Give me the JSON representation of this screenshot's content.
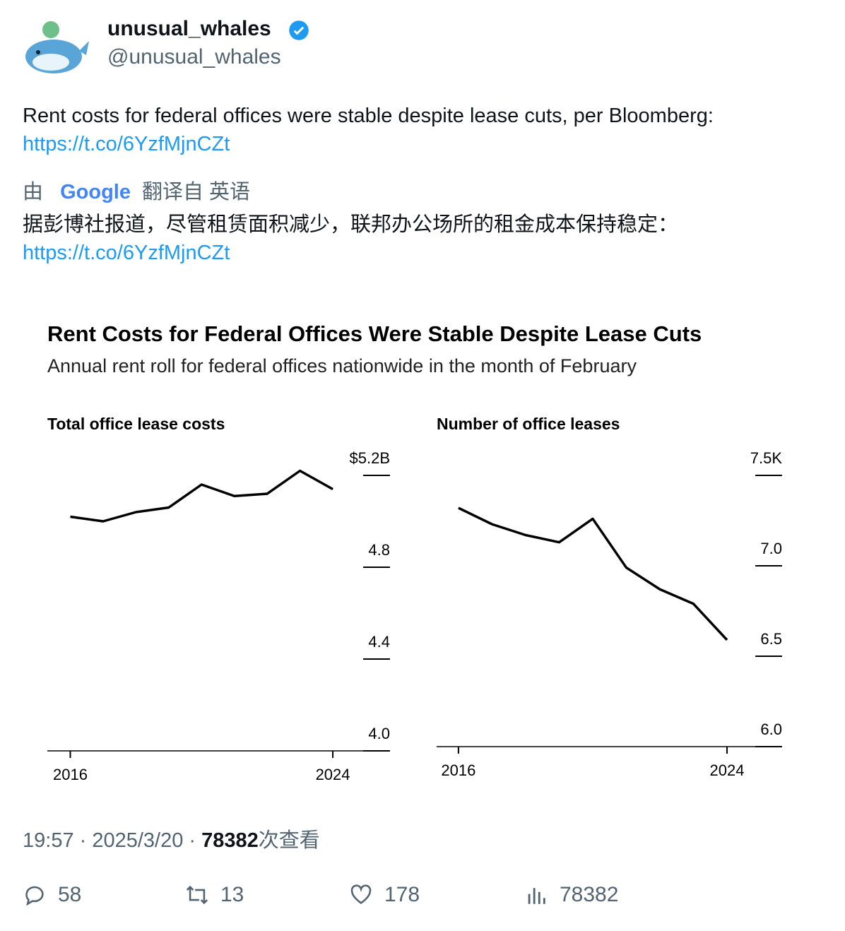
{
  "tweet": {
    "name": "unusual_whales",
    "handle": "@unusual_whales",
    "text": "Rent costs for federal offices were stable despite lease cuts, per Bloomberg:",
    "link": "https://t.co/6YzfMjnCZt",
    "translation": {
      "by": "由",
      "provider": "Google",
      "from": "翻译自 英语",
      "text": "据彭博社报道，尽管租赁面积减少，联邦办公场所的租金成本保持稳定：",
      "link": "https://t.co/6YzfMjnCZt"
    },
    "time": "19:57 · 2025/3/20 · ",
    "views": "78382",
    "views_label": "次查看",
    "stats": {
      "replies": "58",
      "retweets": "13",
      "likes": "178",
      "views": "78382"
    }
  },
  "figure": {
    "title": "Rent Costs for Federal Offices Were Stable Despite Lease Cuts",
    "subtitle": "Annual rent roll for federal offices nationwide in the month of February"
  },
  "chart_data": [
    {
      "type": "line",
      "title": "Total office lease costs",
      "color": "#000000",
      "x": [
        2016,
        2017,
        2018,
        2019,
        2020,
        2021,
        2022,
        2023,
        2024
      ],
      "values": [
        5.02,
        5.0,
        5.04,
        5.06,
        5.16,
        5.11,
        5.12,
        5.22,
        5.14
      ],
      "xlim": [
        2015.3,
        2025.7
      ],
      "xticks": [
        2016,
        2024
      ],
      "ylim": [
        4,
        5.2
      ],
      "yticks": [
        {
          "value": 4,
          "label": "4.0"
        },
        4.4,
        4.8,
        {
          "value": 5.2,
          "label": "$5.2B"
        }
      ]
    },
    {
      "type": "line",
      "title": "Number of office leases",
      "color": "#000000",
      "x": [
        2016,
        2017,
        2018,
        2019,
        2020,
        2021,
        2022,
        2023,
        2024
      ],
      "values": [
        7.32,
        7.23,
        7.17,
        7.13,
        7.26,
        6.99,
        6.87,
        6.79,
        6.59
      ],
      "xlim": [
        2015.35,
        2025.6
      ],
      "xticks": [
        2016,
        2024
      ],
      "ylim": [
        6,
        7.5
      ],
      "yticks": [
        {
          "value": 6,
          "label": "6.0"
        },
        6.5,
        {
          "value": 7,
          "label": "7.0"
        },
        {
          "value": 7.5,
          "label": "7.5K"
        }
      ]
    }
  ]
}
